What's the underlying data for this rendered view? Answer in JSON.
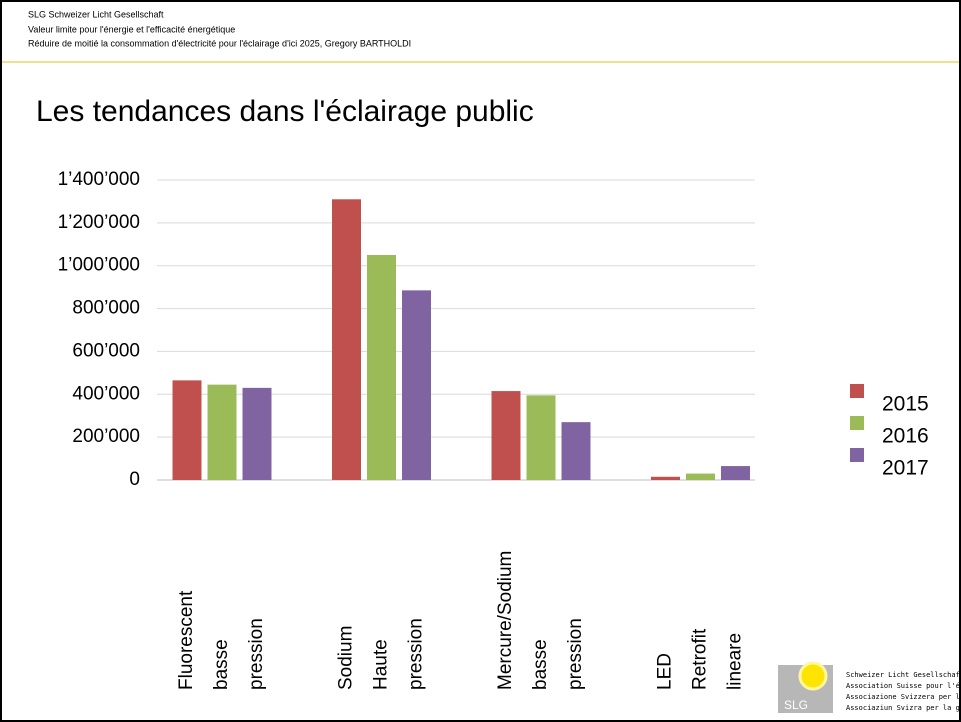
{
  "header": {
    "lines": [
      "SLG Schweizer Licht Gesellschaft",
      "Valeur limite pour l'énergie et l'efficacité énergétique",
      "Réduire de moitié la consommation d'électricité pour l'éclairage d'ici 2025, Gregory BARTHOLDI"
    ]
  },
  "logo": {
    "mark": "SLG",
    "lines": [
      "Schweizer Licht Gesellschaft",
      "Association Suisse pour l'éclairage",
      "Associazione Svizzera per la luce",
      "Associaziun Svizra per la glisch"
    ]
  },
  "chart_data": {
    "type": "bar",
    "title": "Les tendances dans l'éclairage public",
    "categories": [
      [
        "Fluorescent",
        "basse",
        "pression"
      ],
      [
        "Sodium",
        "Haute",
        "pression"
      ],
      [
        "Mercure/Sodium",
        "basse",
        "pression"
      ],
      [
        "LED",
        "Retrofit",
        "lineare"
      ]
    ],
    "series": [
      {
        "name": "2015",
        "color": "#c0504d",
        "values": [
          465000,
          1310000,
          415000,
          15000
        ]
      },
      {
        "name": "2016",
        "color": "#9bbb59",
        "values": [
          445000,
          1050000,
          395000,
          30000
        ]
      },
      {
        "name": "2017",
        "color": "#8064a2",
        "values": [
          430000,
          885000,
          270000,
          65000
        ]
      }
    ],
    "ylim": [
      0,
      1400000
    ],
    "yticks": [
      0,
      {
        "value": 200000,
        "label": "200’000"
      },
      {
        "value": 400000,
        "label": "400’000"
      },
      {
        "value": 600000,
        "label": "600’000"
      },
      {
        "value": 800000,
        "label": "800’000"
      },
      {
        "value": 1000000,
        "label": "1’000’000"
      },
      {
        "value": 1200000,
        "label": "1’200’000"
      },
      {
        "value": 1400000,
        "label": "1’400’000"
      }
    ],
    "grid": true,
    "legend": "right"
  }
}
